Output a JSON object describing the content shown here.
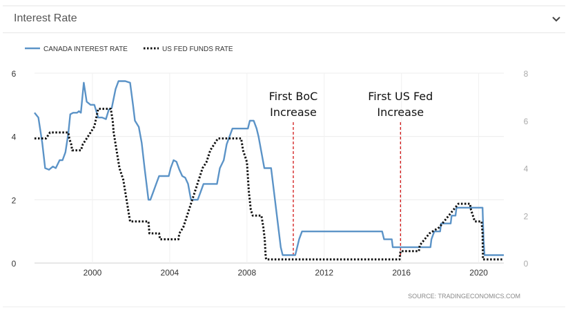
{
  "panel": {
    "title": "Interest Rate",
    "icon": "chevron-down-icon"
  },
  "source": "SOURCE:  TRADINGECONOMICS.COM",
  "chart_data": {
    "type": "line",
    "title": "",
    "xlabel": "",
    "ylabel": "",
    "xlim": [
      1997,
      2021.3
    ],
    "grid": true,
    "legend": "top-left",
    "x_ticks": [
      2000,
      2004,
      2008,
      2012,
      2016,
      2020
    ],
    "left_axis": {
      "ylim": [
        0,
        6
      ],
      "ticks": [
        0,
        2,
        4,
        6
      ]
    },
    "right_axis": {
      "ylim": [
        0,
        8
      ],
      "ticks": [
        0,
        2,
        4,
        6,
        8
      ]
    },
    "annotations": [
      {
        "lines": [
          "First BoC",
          "Increase"
        ],
        "x": 2010.4,
        "y": 4.6,
        "color": "#cc0000"
      },
      {
        "lines": [
          "First US Fed",
          "Increase"
        ],
        "x": 2015.95,
        "y": 4.6,
        "color": "#cc0000"
      }
    ],
    "series": [
      {
        "name": "CANADA INTEREST RATE",
        "axis": "left",
        "color": "#5b93c7",
        "style": "solid",
        "points": [
          [
            1997.0,
            4.75
          ],
          [
            1997.2,
            4.6
          ],
          [
            1997.4,
            3.8
          ],
          [
            1997.55,
            3.0
          ],
          [
            1997.75,
            2.95
          ],
          [
            1997.95,
            3.05
          ],
          [
            1998.1,
            3.0
          ],
          [
            1998.3,
            3.25
          ],
          [
            1998.45,
            3.25
          ],
          [
            1998.6,
            3.5
          ],
          [
            1998.75,
            4.1
          ],
          [
            1998.85,
            4.7
          ],
          [
            1999.0,
            4.75
          ],
          [
            1999.2,
            4.75
          ],
          [
            1999.3,
            4.8
          ],
          [
            1999.4,
            4.75
          ],
          [
            1999.55,
            5.7
          ],
          [
            1999.7,
            5.1
          ],
          [
            1999.9,
            5.0
          ],
          [
            2000.1,
            5.0
          ],
          [
            2000.3,
            4.6
          ],
          [
            2000.5,
            4.6
          ],
          [
            2000.7,
            4.55
          ],
          [
            2000.85,
            4.85
          ],
          [
            2001.0,
            4.9
          ],
          [
            2001.2,
            5.5
          ],
          [
            2001.35,
            5.75
          ],
          [
            2001.5,
            5.75
          ],
          [
            2001.7,
            5.75
          ],
          [
            2001.95,
            5.7
          ],
          [
            2002.1,
            5.0
          ],
          [
            2002.2,
            4.5
          ],
          [
            2002.4,
            4.3
          ],
          [
            2002.55,
            3.8
          ],
          [
            2002.7,
            3.0
          ],
          [
            2002.8,
            2.5
          ],
          [
            2002.9,
            2.0
          ],
          [
            2003.0,
            2.0
          ],
          [
            2003.15,
            2.25
          ],
          [
            2003.3,
            2.5
          ],
          [
            2003.45,
            2.75
          ],
          [
            2003.6,
            2.75
          ],
          [
            2003.8,
            2.75
          ],
          [
            2003.95,
            2.75
          ],
          [
            2004.05,
            3.0
          ],
          [
            2004.2,
            3.25
          ],
          [
            2004.35,
            3.2
          ],
          [
            2004.5,
            2.95
          ],
          [
            2004.65,
            2.75
          ],
          [
            2004.8,
            2.7
          ],
          [
            2004.95,
            2.5
          ],
          [
            2005.1,
            2.0
          ],
          [
            2005.3,
            2.0
          ],
          [
            2005.45,
            2.0
          ],
          [
            2005.6,
            2.25
          ],
          [
            2005.75,
            2.5
          ],
          [
            2005.9,
            2.5
          ],
          [
            2006.1,
            2.5
          ],
          [
            2006.3,
            2.5
          ],
          [
            2006.45,
            2.5
          ],
          [
            2006.6,
            3.0
          ],
          [
            2006.8,
            3.25
          ],
          [
            2006.95,
            3.75
          ],
          [
            2007.1,
            4.0
          ],
          [
            2007.25,
            4.25
          ],
          [
            2007.45,
            4.25
          ],
          [
            2007.7,
            4.25
          ],
          [
            2007.9,
            4.25
          ],
          [
            2008.05,
            4.25
          ],
          [
            2008.15,
            4.5
          ],
          [
            2008.35,
            4.5
          ],
          [
            2008.5,
            4.25
          ],
          [
            2008.6,
            4.0
          ],
          [
            2008.75,
            3.5
          ],
          [
            2008.9,
            3.0
          ],
          [
            2009.05,
            3.0
          ],
          [
            2009.25,
            3.0
          ],
          [
            2009.35,
            2.5
          ],
          [
            2009.45,
            2.0
          ],
          [
            2009.55,
            1.5
          ],
          [
            2009.65,
            1.0
          ],
          [
            2009.75,
            0.5
          ],
          [
            2009.85,
            0.25
          ],
          [
            2010.2,
            0.25
          ],
          [
            2010.5,
            0.25
          ],
          [
            2010.6,
            0.5
          ],
          [
            2010.7,
            0.75
          ],
          [
            2010.85,
            1.0
          ],
          [
            2011.5,
            1.0
          ],
          [
            2012.5,
            1.0
          ],
          [
            2013.5,
            1.0
          ],
          [
            2014.5,
            1.0
          ],
          [
            2015.0,
            1.0
          ],
          [
            2015.1,
            0.75
          ],
          [
            2015.5,
            0.75
          ],
          [
            2015.55,
            0.5
          ],
          [
            2016.5,
            0.5
          ],
          [
            2017.0,
            0.5
          ],
          [
            2017.5,
            0.5
          ],
          [
            2017.55,
            0.75
          ],
          [
            2017.7,
            1.0
          ],
          [
            2018.0,
            1.0
          ],
          [
            2018.05,
            1.25
          ],
          [
            2018.55,
            1.25
          ],
          [
            2018.6,
            1.5
          ],
          [
            2018.8,
            1.5
          ],
          [
            2018.85,
            1.75
          ],
          [
            2020.0,
            1.75
          ],
          [
            2020.2,
            1.75
          ],
          [
            2020.25,
            0.75
          ],
          [
            2020.3,
            0.25
          ],
          [
            2021.3,
            0.25
          ]
        ]
      },
      {
        "name": "US FED FUNDS RATE",
        "axis": "right",
        "color": "#111111",
        "style": "dotted",
        "points": [
          [
            1997.0,
            5.25
          ],
          [
            1997.6,
            5.25
          ],
          [
            1997.8,
            5.5
          ],
          [
            1998.0,
            5.5
          ],
          [
            1998.5,
            5.5
          ],
          [
            1998.75,
            5.5
          ],
          [
            1998.8,
            5.25
          ],
          [
            1998.9,
            5.0
          ],
          [
            1998.95,
            4.75
          ],
          [
            1999.4,
            4.75
          ],
          [
            1999.5,
            5.0
          ],
          [
            1999.7,
            5.25
          ],
          [
            1999.9,
            5.5
          ],
          [
            2000.1,
            5.75
          ],
          [
            2000.3,
            6.5
          ],
          [
            2000.5,
            6.5
          ],
          [
            2000.95,
            6.5
          ],
          [
            2001.05,
            6.0
          ],
          [
            2001.1,
            5.5
          ],
          [
            2001.2,
            5.0
          ],
          [
            2001.3,
            4.5
          ],
          [
            2001.4,
            4.0
          ],
          [
            2001.5,
            3.75
          ],
          [
            2001.6,
            3.5
          ],
          [
            2001.7,
            3.0
          ],
          [
            2001.8,
            2.5
          ],
          [
            2001.9,
            2.0
          ],
          [
            2001.95,
            1.75
          ],
          [
            2002.9,
            1.75
          ],
          [
            2002.95,
            1.25
          ],
          [
            2003.45,
            1.25
          ],
          [
            2003.5,
            1.0
          ],
          [
            2004.45,
            1.0
          ],
          [
            2004.5,
            1.25
          ],
          [
            2004.7,
            1.5
          ],
          [
            2004.9,
            2.0
          ],
          [
            2005.1,
            2.5
          ],
          [
            2005.3,
            3.0
          ],
          [
            2005.5,
            3.5
          ],
          [
            2005.7,
            4.0
          ],
          [
            2005.9,
            4.25
          ],
          [
            2006.1,
            4.75
          ],
          [
            2006.3,
            5.0
          ],
          [
            2006.5,
            5.25
          ],
          [
            2007.0,
            5.25
          ],
          [
            2007.7,
            5.25
          ],
          [
            2007.8,
            4.75
          ],
          [
            2007.9,
            4.5
          ],
          [
            2008.0,
            4.25
          ],
          [
            2008.1,
            3.0
          ],
          [
            2008.2,
            2.25
          ],
          [
            2008.3,
            2.0
          ],
          [
            2008.75,
            2.0
          ],
          [
            2008.85,
            1.5
          ],
          [
            2008.92,
            1.0
          ],
          [
            2008.97,
            0.25
          ],
          [
            2009.0,
            0.15
          ],
          [
            2012.0,
            0.15
          ],
          [
            2015.0,
            0.15
          ],
          [
            2015.9,
            0.15
          ],
          [
            2015.95,
            0.5
          ],
          [
            2016.9,
            0.5
          ],
          [
            2016.95,
            0.75
          ],
          [
            2017.2,
            1.0
          ],
          [
            2017.45,
            1.25
          ],
          [
            2017.95,
            1.5
          ],
          [
            2018.2,
            1.75
          ],
          [
            2018.45,
            2.0
          ],
          [
            2018.7,
            2.25
          ],
          [
            2018.95,
            2.5
          ],
          [
            2019.55,
            2.5
          ],
          [
            2019.6,
            2.25
          ],
          [
            2019.7,
            2.0
          ],
          [
            2019.8,
            1.75
          ],
          [
            2020.15,
            1.75
          ],
          [
            2020.2,
            1.25
          ],
          [
            2020.22,
            0.15
          ],
          [
            2021.3,
            0.15
          ]
        ]
      }
    ]
  }
}
